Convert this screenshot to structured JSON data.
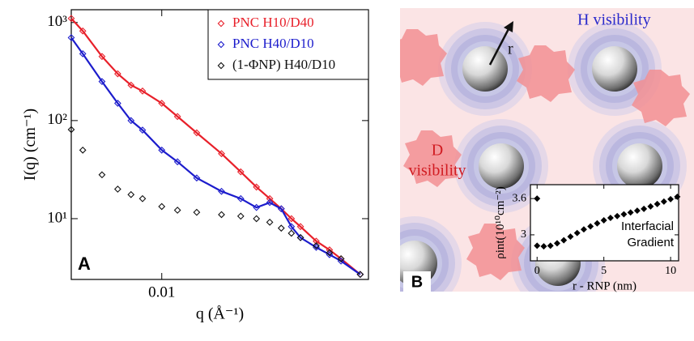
{
  "chart_data": [
    {
      "type": "scatter",
      "log_x": true,
      "log_y": true,
      "panel_label": "A",
      "x_label": "q (Å⁻¹)",
      "y_label": "I(q) (cm⁻¹)",
      "xlim": [
        0.0035,
        0.11
      ],
      "ylim": [
        2.4,
        1350
      ],
      "xticks": [
        0.01
      ],
      "yticks": [
        {
          "value": 10,
          "label": "10¹"
        },
        {
          "value": 100,
          "label": "10²"
        },
        {
          "value": 1000,
          "label": "10³"
        }
      ],
      "legend": "top-right",
      "x": [
        0.0035,
        0.004,
        0.005,
        0.006,
        0.007,
        0.008,
        0.01,
        0.012,
        0.015,
        0.02,
        0.025,
        0.03,
        0.035,
        0.04,
        0.045,
        0.05,
        0.06,
        0.07,
        0.08,
        0.1
      ],
      "series": [
        {
          "name": "PNC H10/D40",
          "color": "#e8202a",
          "fit_line": true,
          "values": [
            1100,
            820,
            450,
            300,
            230,
            200,
            150,
            110,
            75,
            46,
            30,
            21,
            16,
            12.6,
            10,
            8.3,
            5.9,
            4.8,
            3.9,
            2.7
          ]
        },
        {
          "name": "PNC H40/D10",
          "color": "#1c1ccc",
          "fit_line": true,
          "values": [
            700,
            480,
            250,
            150,
            100,
            80,
            50,
            38,
            26,
            19,
            16,
            13,
            14.6,
            12.6,
            8.3,
            6.4,
            5.1,
            4.3,
            3.7,
            2.7
          ]
        },
        {
          "name": "(1-ΦNP) H40/D10",
          "color": "#111111",
          "fit_line": false,
          "values": [
            81,
            50,
            28,
            20,
            17.6,
            16,
            13.3,
            12.2,
            11.6,
            11,
            10.6,
            10,
            9.2,
            8,
            7.1,
            6.4,
            5.3,
            4.5,
            3.9,
            2.7
          ]
        }
      ]
    },
    {
      "type": "scatter",
      "log_x": false,
      "log_y": false,
      "x_label": "r - RNP (nm)",
      "y_label": "ρint(10¹⁰cm⁻²)",
      "annotation": [
        "Interfacial",
        "Gradient"
      ],
      "xlim": [
        -0.5,
        10.6
      ],
      "ylim": [
        2.57,
        3.83
      ],
      "xticks": [
        0,
        5,
        10
      ],
      "yticks": [
        3,
        3.6
      ],
      "x": [
        0,
        0,
        0.5,
        1,
        1.5,
        2,
        2.5,
        3,
        3.5,
        4,
        4.5,
        5,
        5.5,
        6,
        6.5,
        7,
        7.5,
        8,
        8.5,
        9,
        9.5,
        10,
        10.5
      ],
      "series": [
        {
          "color": "#000000",
          "values": [
            3.6,
            2.82,
            2.81,
            2.82,
            2.86,
            2.91,
            2.97,
            3.03,
            3.09,
            3.14,
            3.19,
            3.24,
            3.28,
            3.31,
            3.34,
            3.37,
            3.4,
            3.43,
            3.47,
            3.51,
            3.55,
            3.59,
            3.63
          ]
        }
      ]
    }
  ],
  "illustration": {
    "panel_label": "B",
    "r_label": "r",
    "h_label": "H visibility",
    "d_label": [
      "D",
      "visibility"
    ]
  }
}
